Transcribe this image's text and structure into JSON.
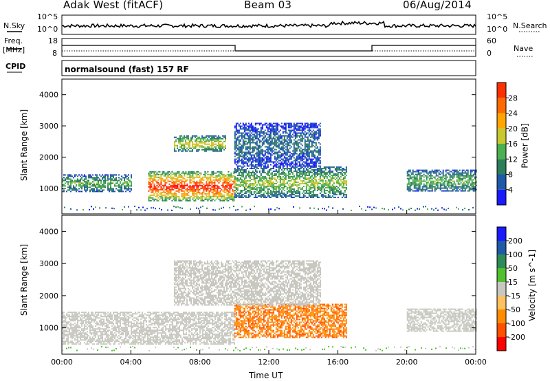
{
  "header": {
    "station": "Adak West (fitACF)",
    "beam": "Beam 03",
    "date": "06/Aug/2014"
  },
  "side_labels": {
    "nsky": "N.Sky",
    "nsearch": "N.Search",
    "freq_line1": "Freq.",
    "freq_line2": "[MHz]",
    "nave": "Nave",
    "cpid": "CPID"
  },
  "cpid_text": "normalsound (fast) 157 RF",
  "noise_panel": {
    "left_top": "10^5",
    "left_bottom": "10^0",
    "right_top": "10^5",
    "right_bottom": "10^0"
  },
  "freq_panel": {
    "left_ticks": [
      "18",
      "8"
    ],
    "right_ticks": [
      "60",
      "0"
    ]
  },
  "colors": {
    "power": [
      "#1a1aff",
      "#1e5aa8",
      "#2e7d5a",
      "#4caf50",
      "#c8c830",
      "#ffa500",
      "#ff6a00",
      "#ff3000",
      "#ff0000"
    ],
    "velocity": [
      "#ff0000",
      "#ff5000",
      "#ff8c00",
      "#ffc060",
      "#c8c8c0",
      "#50c030",
      "#2e8b57",
      "#1e5aa8",
      "#1a1aff"
    ]
  },
  "chart_data": [
    {
      "type": "heatmap",
      "title": "Power",
      "ylabel": "Slant Range [km]",
      "xlabel": "",
      "x_range_hours": [
        0,
        24
      ],
      "ylim": [
        180,
        4500
      ],
      "y_ticks": [
        "1000",
        "2000",
        "3000",
        "4000"
      ],
      "colorbar": {
        "label": "Power [dB]",
        "range": [
          0,
          32
        ],
        "ticks": [
          "4",
          "8",
          "12",
          "16",
          "20",
          "24",
          "28"
        ]
      },
      "echo_regions": [
        {
          "t_start": 0.0,
          "t_end": 4.0,
          "range_km": [
            900,
            1450
          ],
          "power_db": 10
        },
        {
          "t_start": 5.0,
          "t_end": 10.0,
          "range_km": [
            600,
            1550
          ],
          "power_db": 22
        },
        {
          "t_start": 6.5,
          "t_end": 9.5,
          "range_km": [
            2200,
            2700
          ],
          "power_db": 14
        },
        {
          "t_start": 10.0,
          "t_end": 16.5,
          "range_km": [
            700,
            1700
          ],
          "power_db": 12
        },
        {
          "t_start": 10.0,
          "t_end": 15.0,
          "range_km": [
            1700,
            3100
          ],
          "power_db": 6
        },
        {
          "t_start": 20.0,
          "t_end": 24.0,
          "range_km": [
            900,
            1600
          ],
          "power_db": 10
        }
      ]
    },
    {
      "type": "heatmap",
      "title": "Velocity",
      "ylabel": "Slant Range [km]",
      "xlabel": "Time UT",
      "x_range_hours": [
        0,
        24
      ],
      "ylim": [
        180,
        4500
      ],
      "x_ticks": [
        "00:00",
        "04:00",
        "08:00",
        "12:00",
        "16:00",
        "20:00",
        "00:00"
      ],
      "y_ticks": [
        "1000",
        "2000",
        "3000",
        "4000"
      ],
      "colorbar": {
        "label": "Velocity [m s^-1]",
        "ticks": [
          "200",
          "100",
          "50",
          "15",
          "-15",
          "-50",
          "-100",
          "-200"
        ]
      },
      "echo_regions": [
        {
          "t_start": 0.0,
          "t_end": 10.0,
          "range_km": [
            500,
            1500
          ],
          "velocity": 0
        },
        {
          "t_start": 10.0,
          "t_end": 16.5,
          "range_km": [
            700,
            1750
          ],
          "velocity": -70
        },
        {
          "t_start": 6.5,
          "t_end": 15.0,
          "range_km": [
            1700,
            3100
          ],
          "velocity": 0
        },
        {
          "t_start": 20.0,
          "t_end": 24.0,
          "range_km": [
            900,
            1600
          ],
          "velocity": 0
        }
      ]
    }
  ]
}
